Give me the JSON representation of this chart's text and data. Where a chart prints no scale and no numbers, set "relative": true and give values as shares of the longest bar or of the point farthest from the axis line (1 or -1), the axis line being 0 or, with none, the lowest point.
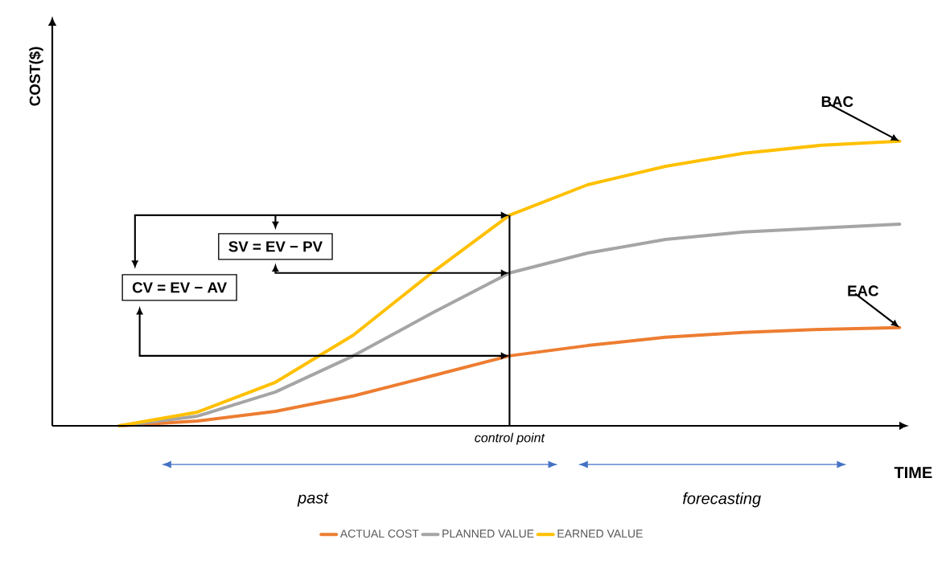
{
  "chart_data": {
    "type": "line",
    "relative": true,
    "xlabel": "TIME",
    "ylabel": "COST($)",
    "categories": [
      null,
      null,
      null,
      null,
      null,
      null,
      null,
      null,
      null,
      null,
      null
    ],
    "series": [
      {
        "name": "ACTUAL COST",
        "color": "#ed7d31",
        "values": [
          0,
          0.017,
          0.051,
          0.105,
          0.175,
          0.246,
          0.282,
          0.311,
          0.328,
          0.339,
          0.345
        ]
      },
      {
        "name": "PLANNED VALUE",
        "color": "#a5a5a5",
        "values": [
          0,
          0.034,
          0.119,
          0.246,
          0.395,
          0.537,
          0.607,
          0.655,
          0.681,
          0.695,
          0.709
        ]
      },
      {
        "name": "EARNED VALUE",
        "color": "#ffc000",
        "values": [
          0,
          0.048,
          0.153,
          0.319,
          0.537,
          0.74,
          0.847,
          0.912,
          0.958,
          0.986,
          1
        ]
      }
    ],
    "annotations": [
      "CV = EV − AV",
      "SV = EV − PV",
      {
        "text": "BAC",
        "y": 1
      },
      {
        "text": "EAC",
        "y": 0.345
      },
      "past",
      "forecasting",
      "control point"
    ],
    "legend": "bottom",
    "marker": "none",
    "line_style": "solid"
  }
}
